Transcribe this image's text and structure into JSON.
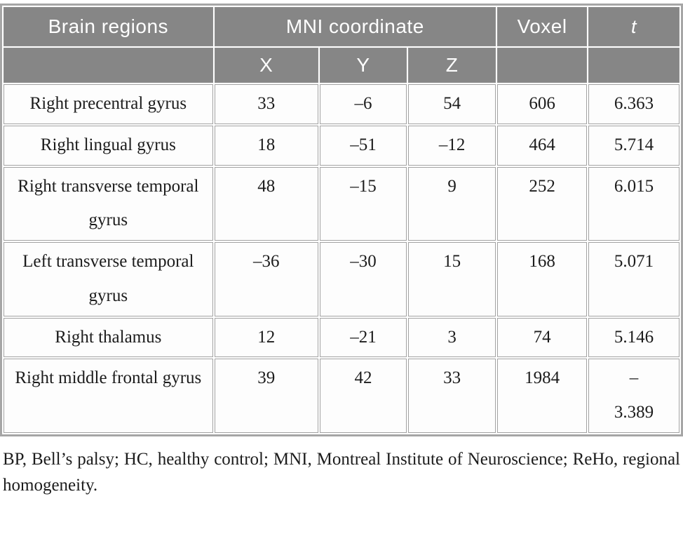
{
  "table": {
    "header": {
      "brain_regions": "Brain regions",
      "mni_coordinate": "MNI coordinate",
      "voxel": "Voxel",
      "t": "t",
      "x": "X",
      "y": "Y",
      "z": "Z"
    },
    "rows": [
      {
        "region": "Right precentral gyrus",
        "x": "33",
        "y": "–6",
        "z": "54",
        "voxel": "606",
        "t": "6.363"
      },
      {
        "region": "Right lingual gyrus",
        "x": "18",
        "y": "–51",
        "z": "–12",
        "voxel": "464",
        "t": "5.714"
      },
      {
        "region": "Right transverse temporal gyrus",
        "x": "48",
        "y": "–15",
        "z": "9",
        "voxel": "252",
        "t": "6.015"
      },
      {
        "region": "Left transverse temporal gyrus",
        "x": "–36",
        "y": "–30",
        "z": "15",
        "voxel": "168",
        "t": "5.071"
      },
      {
        "region": "Right thalamus",
        "x": "12",
        "y": "–21",
        "z": "3",
        "voxel": "74",
        "t": "5.146"
      },
      {
        "region": "Right middle frontal gyrus",
        "x": "39",
        "y": "42",
        "z": "33",
        "voxel": "1984",
        "t": "–\n3.389"
      }
    ]
  },
  "footnote": "BP, Bell’s palsy; HC, healthy control; MNI, Montreal Institute of Neuroscience; ReHo, regional homogeneity.",
  "colors": {
    "header_bg": "#868686",
    "header_text": "#ffffff",
    "border": "#a6a6a6",
    "body_text": "#1c1c1c"
  },
  "chart_data": {
    "type": "table",
    "columns": [
      "Brain regions",
      "X",
      "Y",
      "Z",
      "Voxel",
      "t"
    ],
    "rows": [
      [
        "Right precentral gyrus",
        33,
        -6,
        54,
        606,
        6.363
      ],
      [
        "Right lingual gyrus",
        18,
        -51,
        -12,
        464,
        5.714
      ],
      [
        "Right transverse temporal gyrus",
        48,
        -15,
        9,
        252,
        6.015
      ],
      [
        "Left transverse temporal gyrus",
        -36,
        -30,
        15,
        168,
        5.071
      ],
      [
        "Right thalamus",
        12,
        -21,
        3,
        74,
        5.146
      ],
      [
        "Right middle frontal gyrus",
        39,
        42,
        33,
        1984,
        -3.389
      ]
    ]
  }
}
